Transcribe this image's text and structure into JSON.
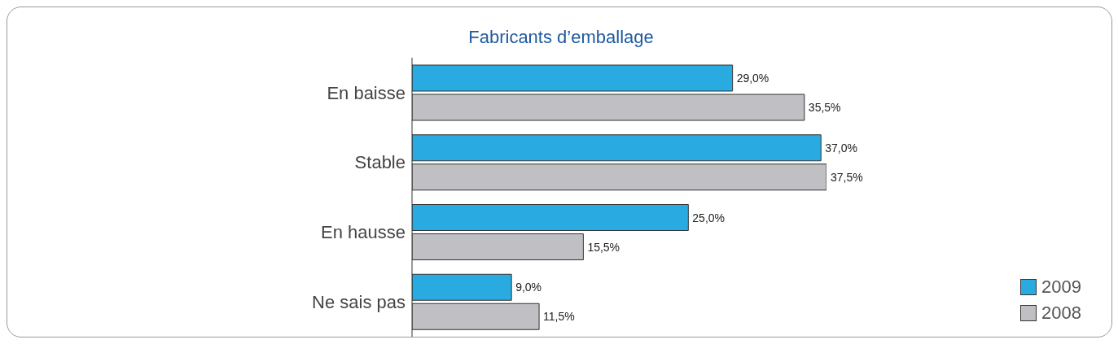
{
  "chart_data": {
    "type": "bar",
    "orientation": "horizontal",
    "title": "Fabricants d’emballage",
    "categories": [
      "En baisse",
      "Stable",
      "En hausse",
      "Ne sais pas"
    ],
    "series": [
      {
        "name": "2009",
        "color": "#29abe2",
        "values": [
          29.0,
          37.0,
          25.0,
          9.0
        ],
        "value_labels": [
          "29,0%",
          "37,0%",
          "25,0%",
          "9,0%"
        ]
      },
      {
        "name": "2008",
        "color": "#c0c0c4",
        "values": [
          35.5,
          37.5,
          15.5,
          11.5
        ],
        "value_labels": [
          "35,5%",
          "37,5%",
          "15,5%",
          "11,5%"
        ]
      }
    ],
    "legend": "bottom right",
    "grid": false
  }
}
